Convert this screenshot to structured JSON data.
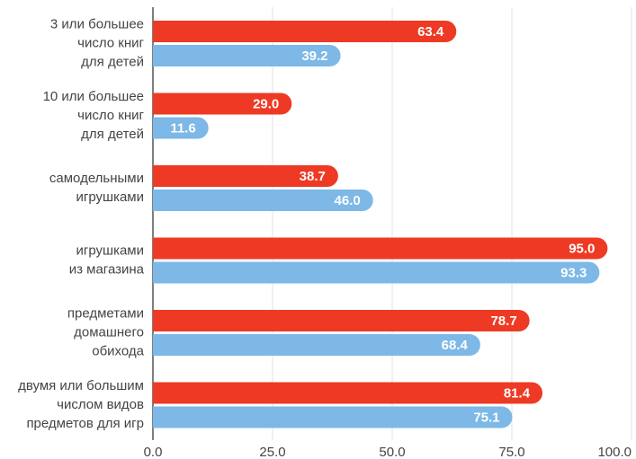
{
  "chart_data": {
    "type": "bar",
    "orientation": "horizontal",
    "categories": [
      [
        "3 или большее",
        "число книг",
        "для детей"
      ],
      [
        "10 или большее",
        "число книг",
        "для детей"
      ],
      [
        "самодельными",
        "игрушками"
      ],
      [
        "игрушками",
        "из магазина"
      ],
      [
        "предметами",
        "домашнего",
        "обихода"
      ],
      [
        "двумя или большим",
        "числом видов",
        "предметов для игр"
      ]
    ],
    "series": [
      {
        "color": "#ee3a24",
        "values": [
          63.4,
          29.0,
          38.7,
          95.0,
          78.7,
          81.4
        ],
        "value_labels": [
          "63.4",
          "29.0",
          "38.7",
          "95.0",
          "78.7",
          "81.4"
        ]
      },
      {
        "color": "#7db8e6",
        "values": [
          39.2,
          11.6,
          46.0,
          93.3,
          68.4,
          75.1
        ],
        "value_labels": [
          "39.2",
          "11.6",
          "46.0",
          "93.3",
          "68.4",
          "75.1"
        ]
      }
    ],
    "xlim": [
      0,
      100
    ],
    "xticks": [
      {
        "value": 0,
        "label": "0.0"
      },
      {
        "value": 25,
        "label": "25.0"
      },
      {
        "value": 50,
        "label": "50.0"
      },
      {
        "value": 75,
        "label": "75.0"
      },
      {
        "value": 100,
        "label": "100.0"
      }
    ],
    "grid": true
  }
}
